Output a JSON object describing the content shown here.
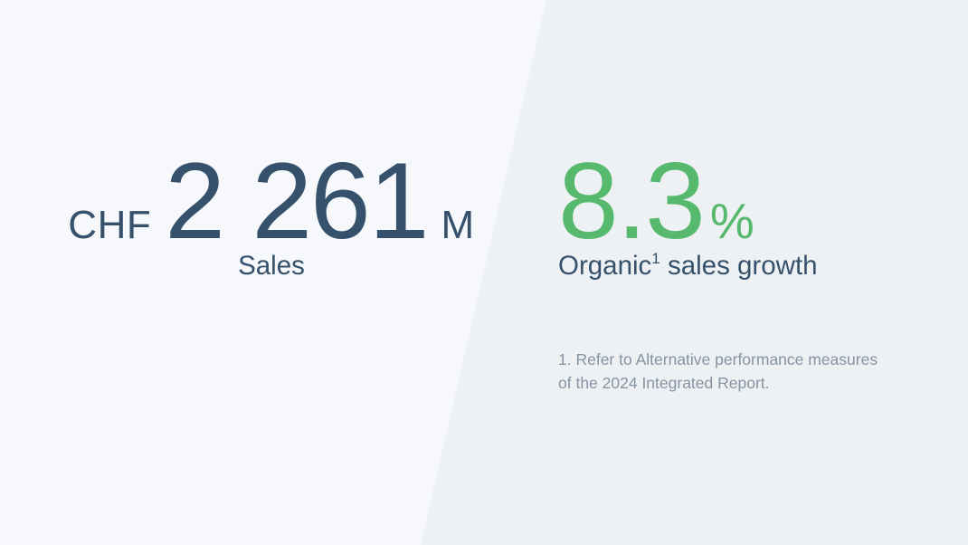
{
  "page": {
    "type": "key-figures-slide",
    "background_left_color": "#f6f8fb",
    "background_right_color": "#edf1f4"
  },
  "colors": {
    "primary_text": "#35516b",
    "accent_green": "#56b96d",
    "footnote_text": "#8593a2"
  },
  "stats": {
    "sales": {
      "currency": "CHF",
      "value": "2 261",
      "unit": "M",
      "label": "Sales"
    },
    "organic_growth": {
      "value": "8.3",
      "unit": "%",
      "label_prefix": "Organic",
      "label_sup": "1",
      "label_suffix": " sales growth",
      "footnote": "1. Refer to Alternative performance measures of the 2024 Integrated Report."
    }
  }
}
